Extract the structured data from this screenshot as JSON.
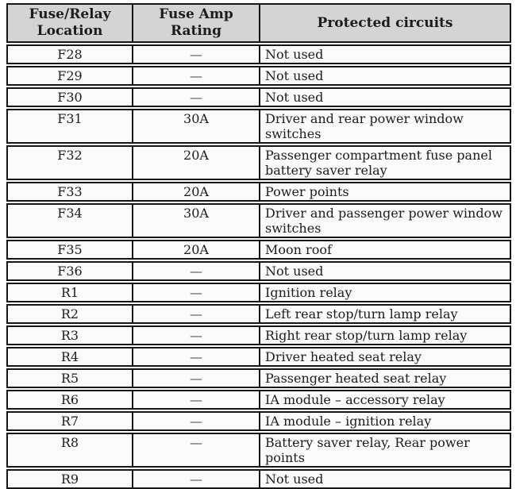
{
  "table": {
    "header": {
      "location": "Fuse/Relay Location",
      "rating": "Fuse Amp Rating",
      "circuits": "Protected circuits"
    },
    "rows": [
      {
        "location": "F28",
        "rating": "—",
        "circuits": "Not used"
      },
      {
        "location": "F29",
        "rating": "—",
        "circuits": "Not used"
      },
      {
        "location": "F30",
        "rating": "—",
        "circuits": "Not used"
      },
      {
        "location": "F31",
        "rating": "30A",
        "circuits": "Driver and rear power window switches"
      },
      {
        "location": "F32",
        "rating": "20A",
        "circuits": "Passenger compartment fuse panel battery saver relay"
      },
      {
        "location": "F33",
        "rating": "20A",
        "circuits": "Power points"
      },
      {
        "location": "F34",
        "rating": "30A",
        "circuits": "Driver and passenger power window switches"
      },
      {
        "location": "F35",
        "rating": "20A",
        "circuits": "Moon roof"
      },
      {
        "location": "F36",
        "rating": "—",
        "circuits": "Not used"
      },
      {
        "location": "R1",
        "rating": "—",
        "circuits": "Ignition relay"
      },
      {
        "location": "R2",
        "rating": "—",
        "circuits": "Left rear stop/turn lamp relay"
      },
      {
        "location": "R3",
        "rating": "—",
        "circuits": "Right rear stop/turn lamp relay"
      },
      {
        "location": "R4",
        "rating": "—",
        "circuits": "Driver heated seat relay"
      },
      {
        "location": "R5",
        "rating": "—",
        "circuits": "Passenger heated seat relay"
      },
      {
        "location": "R6",
        "rating": "—",
        "circuits": "IA module – accessory relay"
      },
      {
        "location": "R7",
        "rating": "—",
        "circuits": "IA module – ignition relay"
      },
      {
        "location": "R8",
        "rating": "—",
        "circuits": "Battery saver relay, Rear power points"
      },
      {
        "location": "R9",
        "rating": "—",
        "circuits": "Not used"
      }
    ],
    "colors": {
      "header_bg": "#d4d4d4",
      "border": "#161616",
      "cell_bg": "#fbfbfb",
      "text": "#1c1c1c"
    }
  }
}
